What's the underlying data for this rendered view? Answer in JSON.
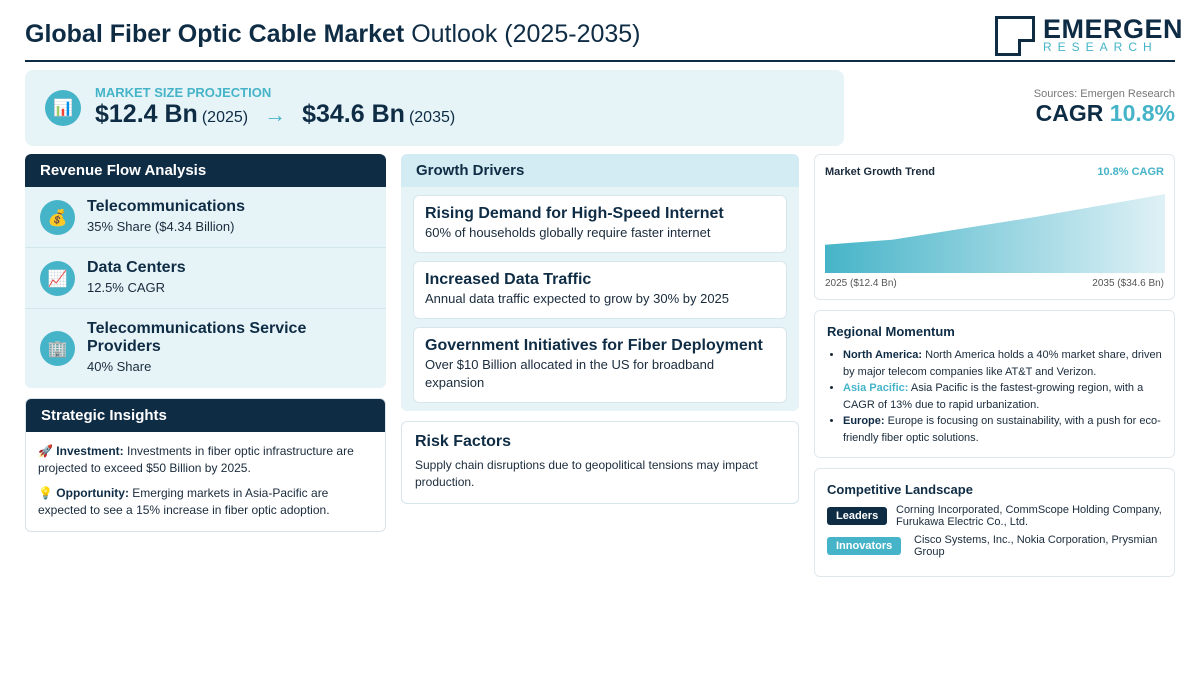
{
  "header": {
    "title_bold": "Global Fiber Optic Cable Market",
    "title_rest": " Outlook (2025-2035)",
    "logo_main": "EMERGEN",
    "logo_sub": "RESEARCH"
  },
  "market_size": {
    "icon": "chart-icon",
    "label": "MARKET SIZE PROJECTION",
    "start_value": "$12.4 Bn",
    "start_year": "(2025)",
    "arrow": "→",
    "end_value": "$34.6 Bn",
    "end_year": "(2035)"
  },
  "sources": "Sources: Emergen Research",
  "cagr": {
    "label": "CAGR",
    "value": "10.8%"
  },
  "revenue_flow": {
    "title": "Revenue Flow Analysis",
    "items": [
      {
        "icon": "money-bag-icon",
        "name": "Telecommunications",
        "detail": "35% Share ($4.34 Billion)"
      },
      {
        "icon": "trend-up-icon",
        "name": "Data Centers",
        "detail": "12.5% CAGR"
      },
      {
        "icon": "building-icon",
        "name": "Telecommunications Service Providers",
        "detail": "40% Share"
      }
    ]
  },
  "strategic_insights": {
    "title": "Strategic Insights",
    "items": [
      {
        "icon": "rocket-icon",
        "label": "Investment:",
        "text": " Investments in fiber optic infrastructure are projected to exceed $50 Billion by 2025."
      },
      {
        "icon": "lightbulb-icon",
        "label": "Opportunity:",
        "text": " Emerging markets in Asia-Pacific are expected to see a 15% increase in fiber optic adoption."
      }
    ]
  },
  "growth_drivers": {
    "title": "Growth Drivers",
    "items": [
      {
        "title": "Rising Demand for High-Speed Internet",
        "text": "60% of households globally require faster internet"
      },
      {
        "title": "Increased Data Traffic",
        "text": "Annual data traffic expected to grow by 30% by 2025"
      },
      {
        "title": "Government Initiatives for Fiber Deployment",
        "text": "Over $10 Billion allocated in the US for broadband expansion"
      }
    ]
  },
  "risk_factors": {
    "title": "Risk Factors",
    "text": "Supply chain disruptions due to geopolitical tensions may impact production."
  },
  "trend": {
    "title": "Market Growth Trend",
    "cagr": "10.8% CAGR",
    "start_label": "2025 ($12.4 Bn)",
    "end_label": "2035 ($34.6 Bn)",
    "chart_data": {
      "type": "area",
      "x": [
        2025,
        2035
      ],
      "values": [
        12.4,
        34.6
      ]
    }
  },
  "regional": {
    "title": "Regional Momentum",
    "items": [
      {
        "region": "North America:",
        "text": " North America holds a 40% market share, driven by major telecom companies like AT&T and Verizon."
      },
      {
        "region": "Asia Pacific:",
        "text": " Asia Pacific is the fastest-growing region, with a CAGR of 13% due to rapid urbanization."
      },
      {
        "region": "Europe:",
        "text": " Europe is focusing on sustainability, with a push for eco-friendly fiber optic solutions."
      }
    ]
  },
  "competitive": {
    "title": "Competitive Landscape",
    "leaders_label": "Leaders",
    "leaders": "Corning Incorporated, CommScope Holding Company, Furukawa Electric Co., Ltd.",
    "innovators_label": "Innovators",
    "innovators": "Cisco Systems, Inc., Nokia Corporation, Prysmian Group"
  },
  "colors": {
    "navy": "#0f2c45",
    "teal": "#46b4c8",
    "light": "#e6f4f8"
  }
}
